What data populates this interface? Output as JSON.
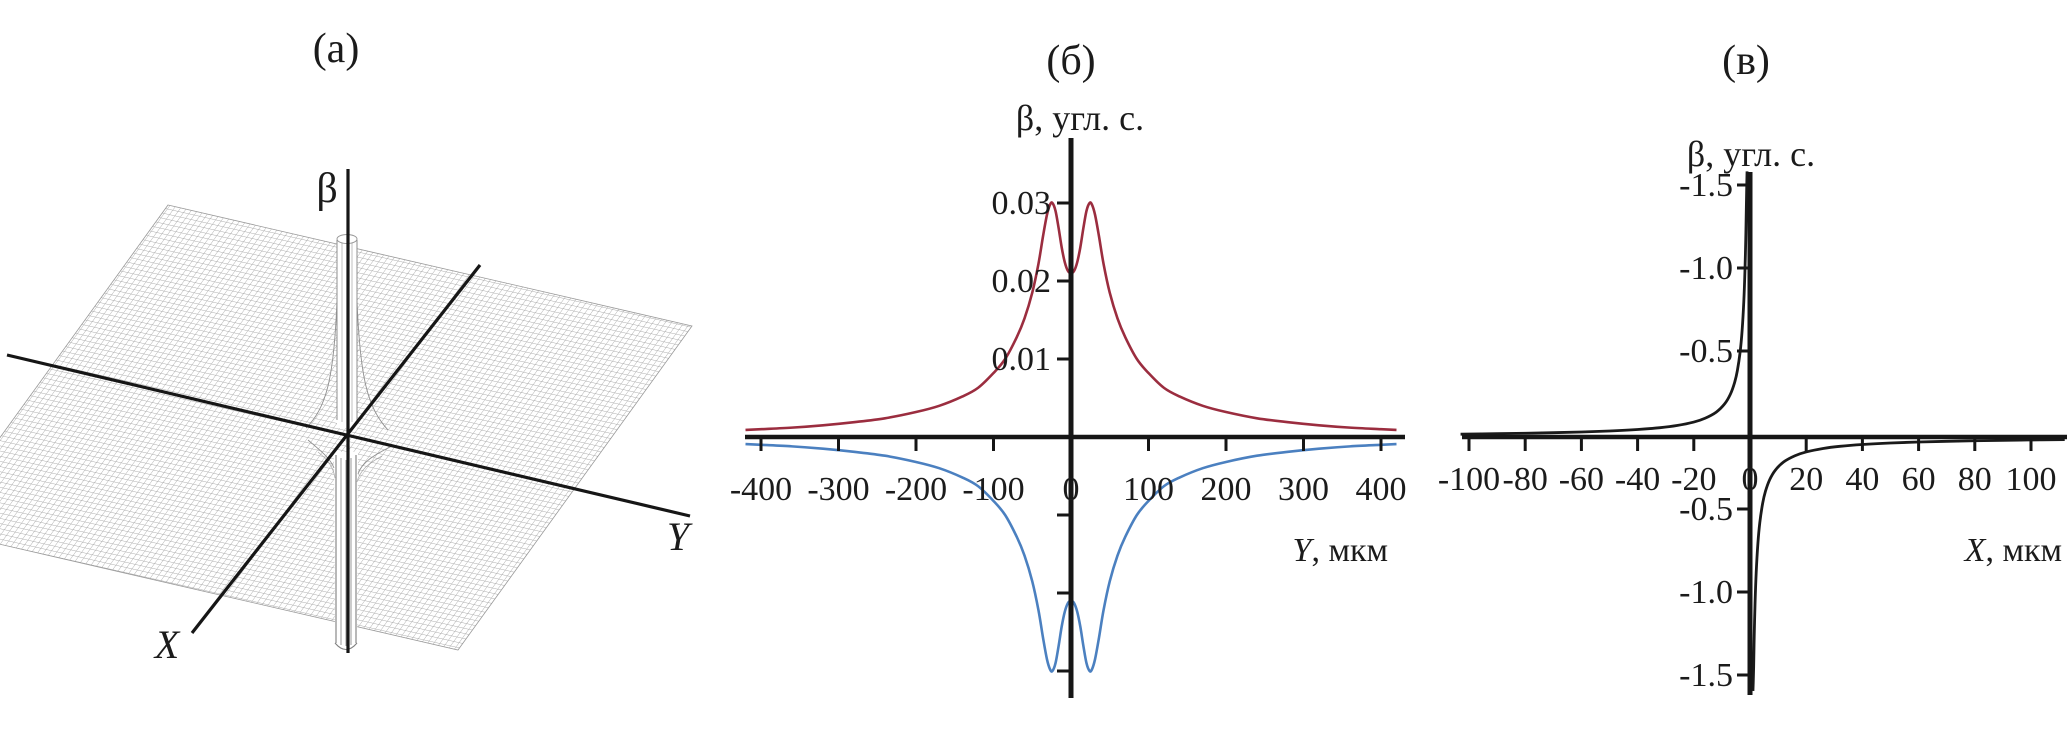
{
  "figure": {
    "accent_colors": {
      "red_curve": "#9b2d3f",
      "blue_curve": "#4b80c0",
      "black_curve": "#1a1a1a",
      "mesh_gray": "#a8a8a8"
    },
    "panels": {
      "a": {
        "title": "(а)",
        "type": "3d_wireframe_surface",
        "description": "Tilted wireframe mesh plane with a narrow positive spike above and a negative funnel below the center, pierced by three axes",
        "axes": {
          "vertical_label": "β",
          "left_label": "X",
          "right_label": "Y"
        }
      },
      "b": {
        "title": "(б)",
        "y_axis_label": "β, угл. с.",
        "x_axis_label_var": "Y",
        "x_axis_label_unit": ", мкм",
        "x_ticks": [
          "-400",
          "-300",
          "-200",
          "-100",
          "0",
          "100",
          "200",
          "300",
          "400"
        ],
        "y_ticks_upper": [
          {
            "value": 0.03,
            "label": "0.03"
          },
          {
            "value": 0.02,
            "label": "0.02"
          },
          {
            "value": 0.01,
            "label": "0.01"
          }
        ],
        "y_ticks_lower": [
          {
            "value": -0.01,
            "label": ""
          },
          {
            "value": -0.02,
            "label": ""
          },
          {
            "value": -0.03,
            "label": ""
          }
        ]
      },
      "v": {
        "title": "(в)",
        "y_axis_label": "β, угл. с.",
        "x_axis_label_var": "X",
        "x_axis_label_unit": ", мкм",
        "x_ticks": [
          "-100",
          "-80",
          "-60",
          "-40",
          "-20",
          "0",
          "20",
          "40",
          "60",
          "80",
          "100"
        ],
        "y_ticks_upper": [
          {
            "value": 1.5,
            "label": "-1.5"
          },
          {
            "value": 1.0,
            "label": "-1.0"
          },
          {
            "value": 0.5,
            "label": "-0.5"
          }
        ],
        "y_ticks_lower": [
          {
            "value": -0.5,
            "label": "-0.5"
          },
          {
            "value": -1.0,
            "label": "-1.0"
          },
          {
            "value": -1.5,
            "label": "-1.5"
          }
        ]
      }
    }
  },
  "chart_data": [
    {
      "panel": "а",
      "type": "heatmap",
      "subtype": "3d_wireframe_surface",
      "title": "(а)",
      "axis_labels": {
        "z": "β",
        "x": "X",
        "y": "Y"
      },
      "description": "Qualitative surface β(X,Y): flat plane with sharp positive peak and sharp negative funnel near the origin (dipole-like deformation along X)"
    },
    {
      "panel": "б",
      "type": "line",
      "title": "(б)",
      "xlabel": "Y, мкм",
      "ylabel": "β, угл. с.",
      "xlim": [
        -420,
        420
      ],
      "ylim": [
        -0.035,
        0.035
      ],
      "x_tick_values": [
        -400,
        -300,
        -200,
        -100,
        0,
        100,
        200,
        300,
        400
      ],
      "y_tick_values_labeled": [
        0.01,
        0.02,
        0.03
      ],
      "y_tick_values_unlabeled": [
        -0.01,
        -0.02,
        -0.03
      ],
      "grid": false,
      "legend": "none",
      "series": [
        {
          "name": "upper-branch-red",
          "color": "#9b2d3f",
          "points": [
            [
              -420,
              0.0009
            ],
            [
              -400,
              0.001
            ],
            [
              -360,
              0.0012
            ],
            [
              -320,
              0.0015
            ],
            [
              -280,
              0.0019
            ],
            [
              -240,
              0.0024
            ],
            [
              -200,
              0.0032
            ],
            [
              -170,
              0.004
            ],
            [
              -140,
              0.0052
            ],
            [
              -120,
              0.0063
            ],
            [
              -100,
              0.0082
            ],
            [
              -85,
              0.01
            ],
            [
              -70,
              0.0128
            ],
            [
              -60,
              0.0152
            ],
            [
              -50,
              0.0185
            ],
            [
              -42,
              0.0222
            ],
            [
              -36,
              0.0258
            ],
            [
              -31,
              0.0285
            ],
            [
              -27,
              0.0298
            ],
            [
              -24,
              0.03
            ],
            [
              -20,
              0.029
            ],
            [
              -16,
              0.0268
            ],
            [
              -12,
              0.0243
            ],
            [
              -8,
              0.0224
            ],
            [
              -4,
              0.0213
            ],
            [
              0,
              0.021
            ],
            [
              4,
              0.0213
            ],
            [
              8,
              0.0224
            ],
            [
              12,
              0.0243
            ],
            [
              16,
              0.0268
            ],
            [
              20,
              0.029
            ],
            [
              24,
              0.03
            ],
            [
              27,
              0.0298
            ],
            [
              31,
              0.0285
            ],
            [
              36,
              0.0258
            ],
            [
              42,
              0.0222
            ],
            [
              50,
              0.0185
            ],
            [
              60,
              0.0152
            ],
            [
              70,
              0.0128
            ],
            [
              85,
              0.01
            ],
            [
              100,
              0.0082
            ],
            [
              120,
              0.0063
            ],
            [
              140,
              0.0052
            ],
            [
              170,
              0.004
            ],
            [
              200,
              0.0032
            ],
            [
              240,
              0.0024
            ],
            [
              280,
              0.0019
            ],
            [
              320,
              0.0015
            ],
            [
              360,
              0.0012
            ],
            [
              400,
              0.001
            ],
            [
              420,
              0.0009
            ]
          ]
        },
        {
          "name": "lower-branch-blue",
          "color": "#4b80c0",
          "points": [
            [
              -420,
              -0.0009
            ],
            [
              -400,
              -0.001
            ],
            [
              -360,
              -0.0012
            ],
            [
              -320,
              -0.0015
            ],
            [
              -280,
              -0.0019
            ],
            [
              -240,
              -0.0024
            ],
            [
              -200,
              -0.0032
            ],
            [
              -170,
              -0.004
            ],
            [
              -140,
              -0.0052
            ],
            [
              -120,
              -0.0063
            ],
            [
              -100,
              -0.0082
            ],
            [
              -85,
              -0.01
            ],
            [
              -70,
              -0.0128
            ],
            [
              -60,
              -0.0152
            ],
            [
              -50,
              -0.0185
            ],
            [
              -42,
              -0.0222
            ],
            [
              -36,
              -0.0258
            ],
            [
              -31,
              -0.0285
            ],
            [
              -27,
              -0.0298
            ],
            [
              -24,
              -0.03
            ],
            [
              -20,
              -0.029
            ],
            [
              -16,
              -0.0268
            ],
            [
              -12,
              -0.0243
            ],
            [
              -8,
              -0.0224
            ],
            [
              -4,
              -0.0213
            ],
            [
              0,
              -0.021
            ],
            [
              4,
              -0.0213
            ],
            [
              8,
              -0.0224
            ],
            [
              12,
              -0.0243
            ],
            [
              16,
              -0.0268
            ],
            [
              20,
              -0.029
            ],
            [
              24,
              -0.03
            ],
            [
              27,
              -0.0298
            ],
            [
              31,
              -0.0285
            ],
            [
              36,
              -0.0258
            ],
            [
              42,
              -0.0222
            ],
            [
              50,
              -0.0185
            ],
            [
              60,
              -0.0152
            ],
            [
              70,
              -0.0128
            ],
            [
              85,
              -0.01
            ],
            [
              100,
              -0.0082
            ],
            [
              120,
              -0.0063
            ],
            [
              140,
              -0.0052
            ],
            [
              170,
              -0.004
            ],
            [
              200,
              -0.0032
            ],
            [
              240,
              -0.0024
            ],
            [
              280,
              -0.0019
            ],
            [
              320,
              -0.0015
            ],
            [
              360,
              -0.0012
            ],
            [
              400,
              -0.001
            ],
            [
              420,
              -0.0009
            ]
          ]
        }
      ]
    },
    {
      "panel": "в",
      "type": "line",
      "title": "(в)",
      "xlabel": "X, мкм",
      "ylabel": "β, угл. с.",
      "xlim": [
        -103,
        113
      ],
      "ylim": [
        -1.6,
        1.6
      ],
      "x_tick_values": [
        -100,
        -80,
        -60,
        -40,
        -20,
        0,
        20,
        40,
        60,
        80,
        100
      ],
      "y_tick_labels_as_printed_upper": [
        "-1.5",
        "-1.0",
        "-0.5"
      ],
      "y_tick_labels_as_printed_lower": [
        "-0.5",
        "-1.0",
        "-1.5"
      ],
      "grid": false,
      "legend": "none",
      "series": [
        {
          "name": "left-branch-black",
          "color": "#1a1a1a",
          "points": [
            [
              -103,
              0.017
            ],
            [
              -90,
              0.02
            ],
            [
              -80,
              0.0225
            ],
            [
              -70,
              0.026
            ],
            [
              -60,
              0.03
            ],
            [
              -50,
              0.036
            ],
            [
              -40,
              0.045
            ],
            [
              -32,
              0.056
            ],
            [
              -26,
              0.069
            ],
            [
              -20,
              0.09
            ],
            [
              -16,
              0.113
            ],
            [
              -12,
              0.15
            ],
            [
              -9,
              0.2
            ],
            [
              -7,
              0.257
            ],
            [
              -5.5,
              0.327
            ],
            [
              -4.5,
              0.4
            ],
            [
              -3.5,
              0.514
            ],
            [
              -2.8,
              0.643
            ],
            [
              -2.2,
              0.818
            ],
            [
              -1.8,
              1.0
            ],
            [
              -1.5,
              1.2
            ],
            [
              -1.3,
              1.385
            ],
            [
              -1.15,
              1.52
            ],
            [
              -1.05,
              1.6
            ]
          ]
        },
        {
          "name": "right-branch-black",
          "color": "#1a1a1a",
          "points": [
            [
              1.05,
              -1.53
            ],
            [
              1.15,
              -1.48
            ],
            [
              1.3,
              -1.385
            ],
            [
              1.5,
              -1.2
            ],
            [
              1.8,
              -1.0
            ],
            [
              2.2,
              -0.818
            ],
            [
              2.8,
              -0.643
            ],
            [
              3.5,
              -0.514
            ],
            [
              4.5,
              -0.4
            ],
            [
              5.5,
              -0.327
            ],
            [
              7,
              -0.257
            ],
            [
              9,
              -0.2
            ],
            [
              12,
              -0.15
            ],
            [
              16,
              -0.113
            ],
            [
              20,
              -0.09
            ],
            [
              26,
              -0.069
            ],
            [
              32,
              -0.056
            ],
            [
              40,
              -0.045
            ],
            [
              50,
              -0.036
            ],
            [
              60,
              -0.03
            ],
            [
              70,
              -0.026
            ],
            [
              80,
              -0.0225
            ],
            [
              90,
              -0.02
            ],
            [
              103,
              -0.017
            ],
            [
              112,
              -0.0155
            ]
          ]
        }
      ]
    }
  ]
}
